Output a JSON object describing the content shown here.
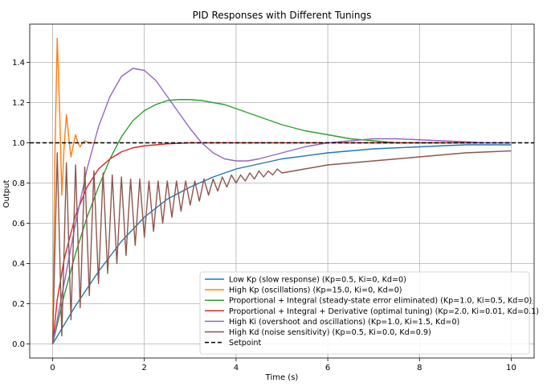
{
  "chart_data": {
    "type": "line",
    "title": "PID Responses with Different Tunings",
    "xlabel": "Time (s)",
    "ylabel": "Output",
    "xlim": [
      -0.5,
      10.5
    ],
    "ylim": [
      -0.07,
      1.59
    ],
    "xticks": [
      0,
      2,
      4,
      6,
      8,
      10
    ],
    "yticks": [
      0.0,
      0.2,
      0.4,
      0.6,
      0.8,
      1.0,
      1.2,
      1.4
    ],
    "xtick_labels": [
      "0",
      "2",
      "4",
      "6",
      "8",
      "10"
    ],
    "ytick_labels": [
      "0.0",
      "0.2",
      "0.4",
      "0.6",
      "0.8",
      "1.0",
      "1.2",
      "1.4"
    ],
    "grid": true,
    "legend_position": "lower-right",
    "series": [
      {
        "name": "Low Kp (slow response) (Kp=0.5, Ki=0, Kd=0)",
        "color": "#1f77b4",
        "x": [
          0,
          0.5,
          1,
          1.5,
          2,
          2.5,
          3,
          3.5,
          4,
          5,
          6,
          7,
          8,
          9,
          10
        ],
        "y": [
          0,
          0.19,
          0.36,
          0.51,
          0.63,
          0.72,
          0.78,
          0.83,
          0.87,
          0.92,
          0.95,
          0.97,
          0.98,
          0.99,
          0.99
        ]
      },
      {
        "name": "High Kp (oscillations) (Kp=15.0, Ki=0, Kd=0)",
        "color": "#ff7f0e",
        "x": [
          0,
          0.05,
          0.1,
          0.15,
          0.2,
          0.25,
          0.3,
          0.35,
          0.4,
          0.45,
          0.5,
          0.55,
          0.6,
          0.65,
          0.7,
          0.8,
          1.0
        ],
        "y": [
          0,
          0.95,
          1.52,
          1.18,
          0.74,
          0.98,
          1.14,
          1.03,
          0.93,
          0.99,
          1.04,
          1.0,
          0.98,
          1.0,
          1.01,
          1.0,
          1.0
        ]
      },
      {
        "name": "Proportional + Integral (steady-state error eliminated) (Kp=1.0, Ki=0.5, Kd=0)",
        "color": "#2ca02c",
        "x": [
          0,
          0.25,
          0.5,
          0.75,
          1,
          1.25,
          1.5,
          1.75,
          2,
          2.25,
          2.5,
          2.75,
          3,
          3.25,
          3.5,
          3.75,
          4,
          4.5,
          5,
          5.5,
          6,
          6.5,
          7,
          7.5,
          8,
          8.5,
          9,
          9.5,
          10
        ],
        "y": [
          0,
          0.24,
          0.45,
          0.63,
          0.78,
          0.92,
          1.03,
          1.11,
          1.16,
          1.19,
          1.21,
          1.215,
          1.215,
          1.21,
          1.2,
          1.19,
          1.17,
          1.13,
          1.09,
          1.06,
          1.04,
          1.02,
          1.01,
          1.0,
          1.0,
          1.0,
          1.0,
          1.0,
          1.0
        ]
      },
      {
        "name": "Proportional + Integral + Derivative (optimal tuning) (Kp=2.0, Ki=0.01, Kd=0.1)",
        "color": "#d62728",
        "x": [
          0,
          0.1,
          0.25,
          0.5,
          0.75,
          1,
          1.25,
          1.5,
          1.75,
          2,
          2.5,
          3,
          4,
          6,
          8,
          10
        ],
        "y": [
          0,
          0.22,
          0.42,
          0.64,
          0.78,
          0.87,
          0.92,
          0.955,
          0.975,
          0.985,
          0.995,
          1.0,
          1.0,
          1.0,
          1.0,
          1.0
        ]
      },
      {
        "name": "High Ki (overshoot and oscillations) (Kp=1.0, Ki=1.5, Kd=0)",
        "color": "#9467bd",
        "x": [
          0,
          0.25,
          0.5,
          0.75,
          1,
          1.25,
          1.5,
          1.75,
          2,
          2.25,
          2.5,
          2.75,
          3,
          3.25,
          3.5,
          3.75,
          4,
          4.25,
          4.5,
          5,
          5.5,
          6,
          6.5,
          7,
          7.5,
          8,
          8.5,
          9,
          9.5,
          10
        ],
        "y": [
          0,
          0.3,
          0.6,
          0.87,
          1.08,
          1.23,
          1.33,
          1.37,
          1.36,
          1.31,
          1.23,
          1.15,
          1.07,
          1.0,
          0.95,
          0.92,
          0.91,
          0.91,
          0.92,
          0.95,
          0.98,
          1.0,
          1.01,
          1.02,
          1.02,
          1.015,
          1.01,
          1.005,
          1.0,
          1.0
        ]
      },
      {
        "name": "High Kd (noise sensitivity) (Kp=0.5, Ki=0.0, Kd=0.9)",
        "color": "#8c564b",
        "x": [
          0,
          0.1,
          0.2,
          0.3,
          0.4,
          0.5,
          0.6,
          0.7,
          0.8,
          0.9,
          1.0,
          1.1,
          1.2,
          1.3,
          1.4,
          1.5,
          1.6,
          1.7,
          1.8,
          1.9,
          2.0,
          2.1,
          2.2,
          2.3,
          2.4,
          2.5,
          2.6,
          2.7,
          2.8,
          2.9,
          3.0,
          3.1,
          3.2,
          3.3,
          3.4,
          3.5,
          3.6,
          3.7,
          3.8,
          3.9,
          4.0,
          4.1,
          4.2,
          4.3,
          4.4,
          4.5,
          4.6,
          4.7,
          4.8,
          4.9,
          5.0,
          5.5,
          6.0,
          6.5,
          7.0,
          7.5,
          8.0,
          8.5,
          9.0,
          9.5,
          10.0
        ],
        "y": [
          0,
          0.95,
          0.04,
          0.9,
          0.12,
          0.89,
          0.18,
          0.88,
          0.24,
          0.86,
          0.3,
          0.85,
          0.35,
          0.84,
          0.4,
          0.83,
          0.44,
          0.82,
          0.49,
          0.82,
          0.53,
          0.81,
          0.56,
          0.81,
          0.6,
          0.81,
          0.63,
          0.81,
          0.66,
          0.81,
          0.69,
          0.81,
          0.71,
          0.82,
          0.74,
          0.82,
          0.76,
          0.83,
          0.78,
          0.84,
          0.8,
          0.84,
          0.81,
          0.85,
          0.82,
          0.86,
          0.83,
          0.86,
          0.84,
          0.87,
          0.85,
          0.87,
          0.89,
          0.9,
          0.91,
          0.92,
          0.93,
          0.94,
          0.95,
          0.955,
          0.96
        ]
      }
    ],
    "setpoint": {
      "name": "Setpoint",
      "color": "#000000",
      "y": 1.0
    }
  }
}
